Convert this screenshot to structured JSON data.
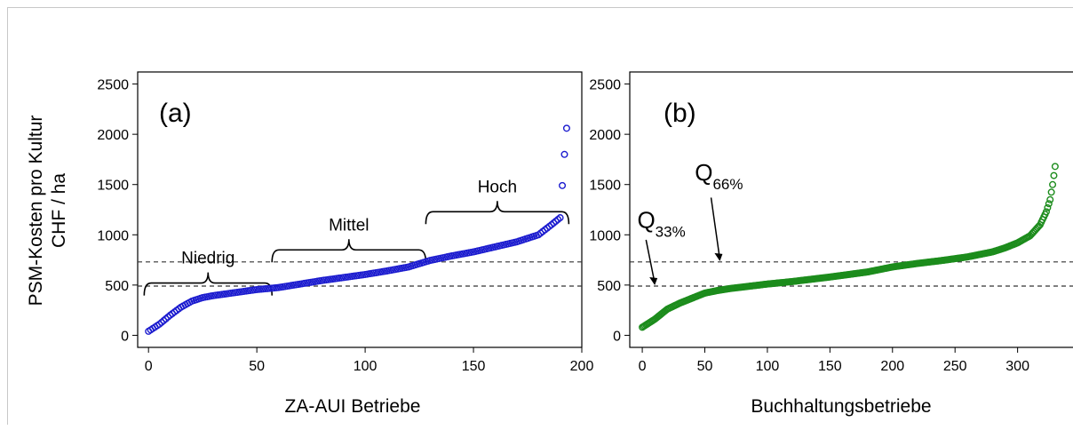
{
  "ylabel_line1": "PSM-Kosten pro Kultur",
  "ylabel_line2": "CHF / ha",
  "colors": {
    "blue": "#1c1ccf",
    "green": "#1c8c1c",
    "dash": "#333333"
  },
  "chart_data": [
    {
      "type": "scatter",
      "panel_label": "(a)",
      "title": "",
      "xlabel": "ZA-AUI Betriebe",
      "ylabel": "PSM-Kosten pro Kultur CHF / ha",
      "xlim": [
        -5,
        200
      ],
      "ylim": [
        0,
        2500
      ],
      "x_ticks": [
        0,
        50,
        100,
        150,
        200
      ],
      "y_ticks": [
        0,
        500,
        1000,
        1500,
        2000,
        2500
      ],
      "series": [
        {
          "color": "#1c1ccf",
          "marker": "open-circle",
          "n": 194,
          "sorted_curve_knots": [
            [
              0,
              40
            ],
            [
              5,
              110
            ],
            [
              10,
              200
            ],
            [
              15,
              280
            ],
            [
              20,
              340
            ],
            [
              25,
              375
            ],
            [
              30,
              395
            ],
            [
              40,
              425
            ],
            [
              50,
              455
            ],
            [
              55,
              465
            ],
            [
              60,
              475
            ],
            [
              70,
              510
            ],
            [
              80,
              545
            ],
            [
              90,
              575
            ],
            [
              100,
              605
            ],
            [
              110,
              640
            ],
            [
              120,
              680
            ],
            [
              130,
              745
            ],
            [
              140,
              790
            ],
            [
              150,
              830
            ],
            [
              160,
              880
            ],
            [
              170,
              930
            ],
            [
              180,
              1000
            ],
            [
              186,
              1100
            ],
            [
              190,
              1170
            ]
          ],
          "outliers": [
            [
              191,
              1490
            ],
            [
              192,
              1800
            ],
            [
              193,
              2060
            ]
          ]
        }
      ],
      "reference_lines": [
        {
          "y": 490,
          "style": "dashed"
        },
        {
          "y": 730,
          "style": "dashed"
        }
      ],
      "brackets": [
        {
          "label": "Niedrig",
          "x_from": -2,
          "x_to": 57,
          "y": 520
        },
        {
          "label": "Mittel",
          "x_from": 57,
          "x_to": 128,
          "y": 850
        },
        {
          "label": "Hoch",
          "x_from": 128,
          "x_to": 194,
          "y": 1230
        }
      ]
    },
    {
      "type": "scatter",
      "panel_label": "(b)",
      "title": "",
      "xlabel": "Buchhaltungsbetriebe",
      "ylabel": "PSM-Kosten pro Kultur CHF / ha",
      "xlim": [
        -10,
        345
      ],
      "ylim": [
        0,
        2500
      ],
      "x_ticks": [
        0,
        50,
        100,
        150,
        200,
        250,
        300
      ],
      "y_ticks": [
        0,
        500,
        1000,
        1500,
        2000,
        2500
      ],
      "series": [
        {
          "color": "#1c8c1c",
          "marker": "open-circle",
          "n": 330,
          "sorted_curve_knots": [
            [
              0,
              80
            ],
            [
              10,
              160
            ],
            [
              20,
              260
            ],
            [
              30,
              320
            ],
            [
              40,
              370
            ],
            [
              50,
              420
            ],
            [
              60,
              445
            ],
            [
              70,
              465
            ],
            [
              80,
              480
            ],
            [
              100,
              510
            ],
            [
              120,
              535
            ],
            [
              150,
              580
            ],
            [
              180,
              630
            ],
            [
              200,
              680
            ],
            [
              220,
              715
            ],
            [
              240,
              745
            ],
            [
              260,
              780
            ],
            [
              280,
              830
            ],
            [
              290,
              870
            ],
            [
              300,
              920
            ],
            [
              310,
              990
            ],
            [
              318,
              1100
            ],
            [
              323,
              1230
            ],
            [
              326,
              1350
            ],
            [
              328,
              1500
            ],
            [
              330,
              1680
            ]
          ]
        }
      ],
      "reference_lines": [
        {
          "y": 490,
          "style": "dashed",
          "label": "Q",
          "label_sub": "33%"
        },
        {
          "y": 730,
          "style": "dashed",
          "label": "Q",
          "label_sub": "66%"
        }
      ]
    }
  ]
}
